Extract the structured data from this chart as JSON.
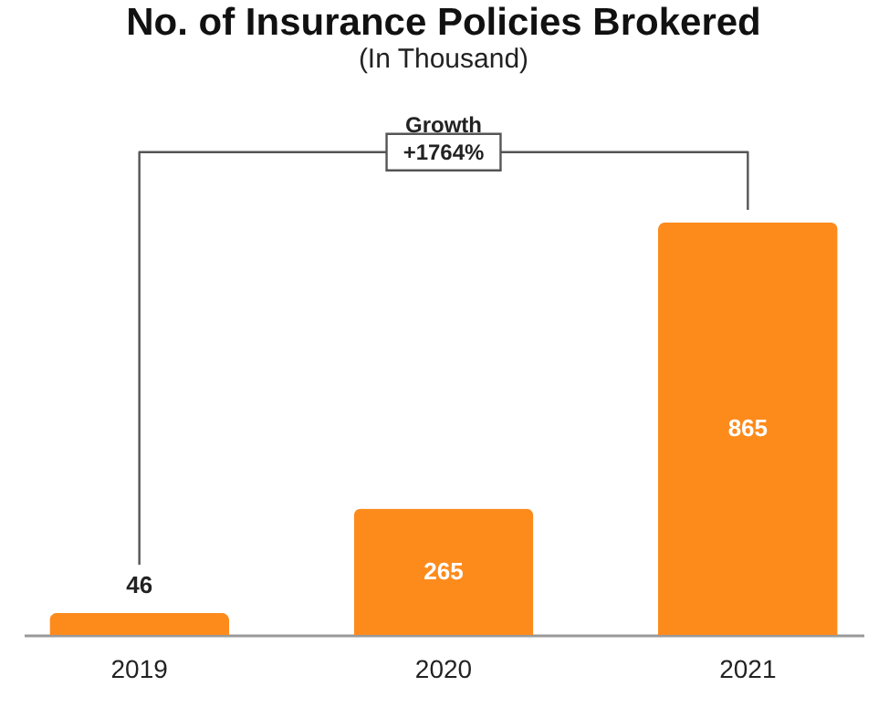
{
  "chart_data": {
    "type": "bar",
    "title": "No. of Insurance Policies Brokered",
    "subtitle": "(In Thousand)",
    "categories": [
      "2019",
      "2020",
      "2021"
    ],
    "values": [
      46,
      265,
      865
    ],
    "color": "#fd8b1c",
    "data_labels": true,
    "annotations": [
      "Growth",
      "+1764%"
    ]
  }
}
